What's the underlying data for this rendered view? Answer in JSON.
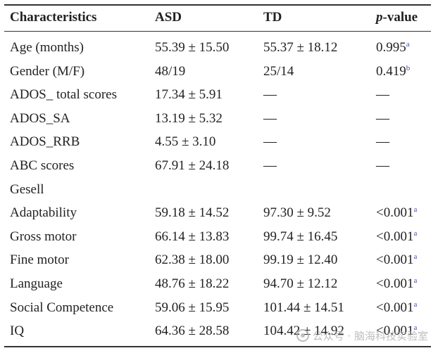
{
  "table": {
    "headers": {
      "characteristics": "Characteristics",
      "asd": "ASD",
      "td": "TD",
      "pvalue_italic": "p",
      "pvalue_rest": "-value"
    },
    "rows": [
      {
        "label": "Age (months)",
        "asd": "55.39 ± 15.50",
        "td": "55.37 ± 18.12",
        "p": "0.995",
        "sup": "a"
      },
      {
        "label": "Gender (M/F)",
        "asd": "48/19",
        "td": "25/14",
        "p": "0.419",
        "sup": "b"
      },
      {
        "label": "ADOS_ total scores",
        "asd": "17.34 ± 5.91",
        "td": "—",
        "p": "—",
        "sup": ""
      },
      {
        "label": "ADOS_SA",
        "asd": "13.19 ± 5.32",
        "td": "—",
        "p": "—",
        "sup": ""
      },
      {
        "label": "ADOS_RRB",
        "asd": "4.55 ± 3.10",
        "td": "—",
        "p": "—",
        "sup": ""
      },
      {
        "label": "ABC scores",
        "asd": "67.91 ± 24.18",
        "td": "—",
        "p": "—",
        "sup": ""
      },
      {
        "label": "Gesell",
        "asd": "",
        "td": "",
        "p": "",
        "sup": ""
      },
      {
        "label": "Adaptability",
        "asd": "59.18 ± 14.52",
        "td": "97.30 ± 9.52",
        "p": "<0.001",
        "sup": "a"
      },
      {
        "label": "Gross motor",
        "asd": "66.14 ± 13.83",
        "td": "99.74 ± 16.45",
        "p": "<0.001",
        "sup": "a"
      },
      {
        "label": "Fine motor",
        "asd": "62.38 ± 18.00",
        "td": "99.19 ± 12.40",
        "p": "<0.001",
        "sup": "a"
      },
      {
        "label": "Language",
        "asd": "48.76 ± 18.22",
        "td": "94.70 ± 12.12",
        "p": "<0.001",
        "sup": "a"
      },
      {
        "label": "Social Competence",
        "asd": "59.06 ± 15.95",
        "td": "101.44 ± 14.51",
        "p": "<0.001",
        "sup": "a"
      },
      {
        "label": "IQ",
        "asd": "64.36 ± 28.58",
        "td": "104.42 ± 14.92",
        "p": "<0.001",
        "sup": "a"
      }
    ]
  },
  "watermark": {
    "text": "公众号 · 脑海科技实验室",
    "icon": "wechat-icon"
  }
}
